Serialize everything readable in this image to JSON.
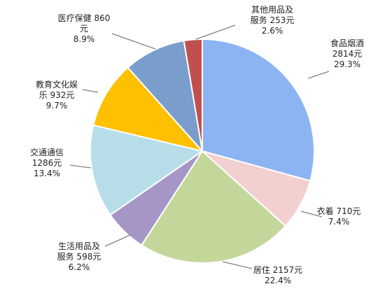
{
  "chart_data": {
    "type": "pie",
    "title": "",
    "slices": [
      {
        "label_lines": [
          "食品烟酒",
          "2814元",
          "29.3%"
        ],
        "value": 2814,
        "percent": 29.3,
        "color": "#8DB4F2"
      },
      {
        "label_lines": [
          "衣着 710元",
          "7.4%"
        ],
        "value": 710,
        "percent": 7.4,
        "color": "#F2D0D0"
      },
      {
        "label_lines": [
          "居住 2157元",
          "22.4%"
        ],
        "value": 2157,
        "percent": 22.4,
        "color": "#C4D79B"
      },
      {
        "label_lines": [
          "生活用品及",
          "服务 598元",
          "6.2%"
        ],
        "value": 598,
        "percent": 6.2,
        "color": "#A596C6"
      },
      {
        "label_lines": [
          "交通通信",
          "1286元",
          "13.4%"
        ],
        "value": 1286,
        "percent": 13.4,
        "color": "#B7DEE8"
      },
      {
        "label_lines": [
          "教育文化娱",
          "乐 932元",
          "9.7%"
        ],
        "value": 932,
        "percent": 9.7,
        "color": "#FFC000"
      },
      {
        "label_lines": [
          "医疗保健 860",
          "元",
          "8.9%"
        ],
        "value": 860,
        "percent": 8.9,
        "color": "#7A9DCC"
      },
      {
        "label_lines": [
          "其他用品及",
          "服务 253元",
          "2.6%"
        ],
        "value": 253,
        "percent": 2.6,
        "color": "#C0504D"
      }
    ]
  }
}
